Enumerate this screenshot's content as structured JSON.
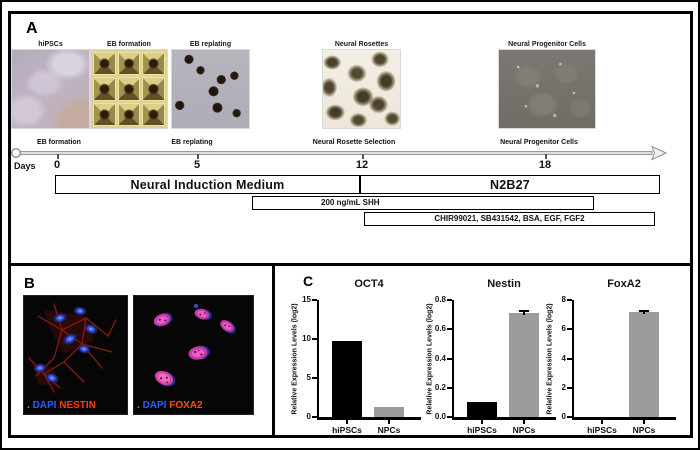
{
  "figure": {
    "panel_a": {
      "label": "A",
      "image_labels": [
        "hiPSCs",
        "EB formation",
        "EB replating",
        "Neural Rosettes",
        "Neural Progenitor Cells"
      ],
      "stage_labels": [
        "EB formation",
        "EB replating",
        "Neural Rosette Selection",
        "Neural Progenitor Cells"
      ],
      "days_label": "Days",
      "day_ticks": [
        "0",
        "5",
        "12",
        "18"
      ],
      "medium_bars": {
        "neural_induction": "Neural Induction Medium",
        "n2b27": "N2B27",
        "shh": "200 ng/mL SHH",
        "small_molecules": "CHIR99021, SB431542, BSA, EGF, FGF2"
      }
    },
    "panel_b": {
      "label": "B",
      "images": [
        {
          "stain1": "DAPI",
          "stain1_color": "#2b5cff",
          "stain2": "NESTIN",
          "stain2_color": "#ff3d00"
        },
        {
          "stain1": "DAPI",
          "stain1_color": "#2b5cff",
          "stain2": "FOXA2",
          "stain2_color": "#ff4d00"
        }
      ]
    },
    "panel_c": {
      "label": "C"
    }
  },
  "chart_data": [
    {
      "type": "bar",
      "title": "OCT4",
      "categories": [
        "hiPSCs",
        "NPCs"
      ],
      "values": [
        9.8,
        1.3
      ],
      "errors": [
        0,
        0
      ],
      "xlabel": "",
      "ylabel": "Relative Expression Levels (log2)",
      "ylim": [
        0,
        15
      ],
      "ytick_values": [
        0,
        5,
        10,
        15
      ],
      "ytick_labels": [
        "0",
        "5",
        "10",
        "15"
      ],
      "bar_colors": [
        "#000000",
        "#9c9c9c"
      ],
      "grid": false,
      "legend": "none"
    },
    {
      "type": "bar",
      "title": "Nestin",
      "categories": [
        "hiPSCs",
        "NPCs"
      ],
      "values": [
        0.1,
        0.71
      ],
      "errors": [
        0,
        0.015
      ],
      "xlabel": "",
      "ylabel": "Relative Expression Levels (log2)",
      "ylim": [
        0,
        0.8
      ],
      "ytick_values": [
        0,
        0.2,
        0.4,
        0.6,
        0.8
      ],
      "ytick_labels": [
        "0.0",
        "0.2",
        "0.4",
        "0.6",
        "0.8"
      ],
      "bar_colors": [
        "#000000",
        "#9c9c9c"
      ],
      "grid": false,
      "legend": "none"
    },
    {
      "type": "bar",
      "title": "FoxA2",
      "categories": [
        "hiPSCs",
        "NPCs"
      ],
      "values": [
        0,
        7.15
      ],
      "errors": [
        0,
        0.1
      ],
      "xlabel": "",
      "ylabel": "Relative Expression Levels (log2)",
      "ylim": [
        0,
        8
      ],
      "ytick_values": [
        0,
        2,
        4,
        6,
        8
      ],
      "ytick_labels": [
        "0",
        "2",
        "4",
        "6",
        "8"
      ],
      "bar_colors": [
        "#000000",
        "#9c9c9c"
      ],
      "grid": false,
      "legend": "none"
    }
  ],
  "colors": {
    "black_bar": "#000000",
    "gray_bar": "#9c9c9c",
    "timeline_gray": "#d9d9d9"
  }
}
